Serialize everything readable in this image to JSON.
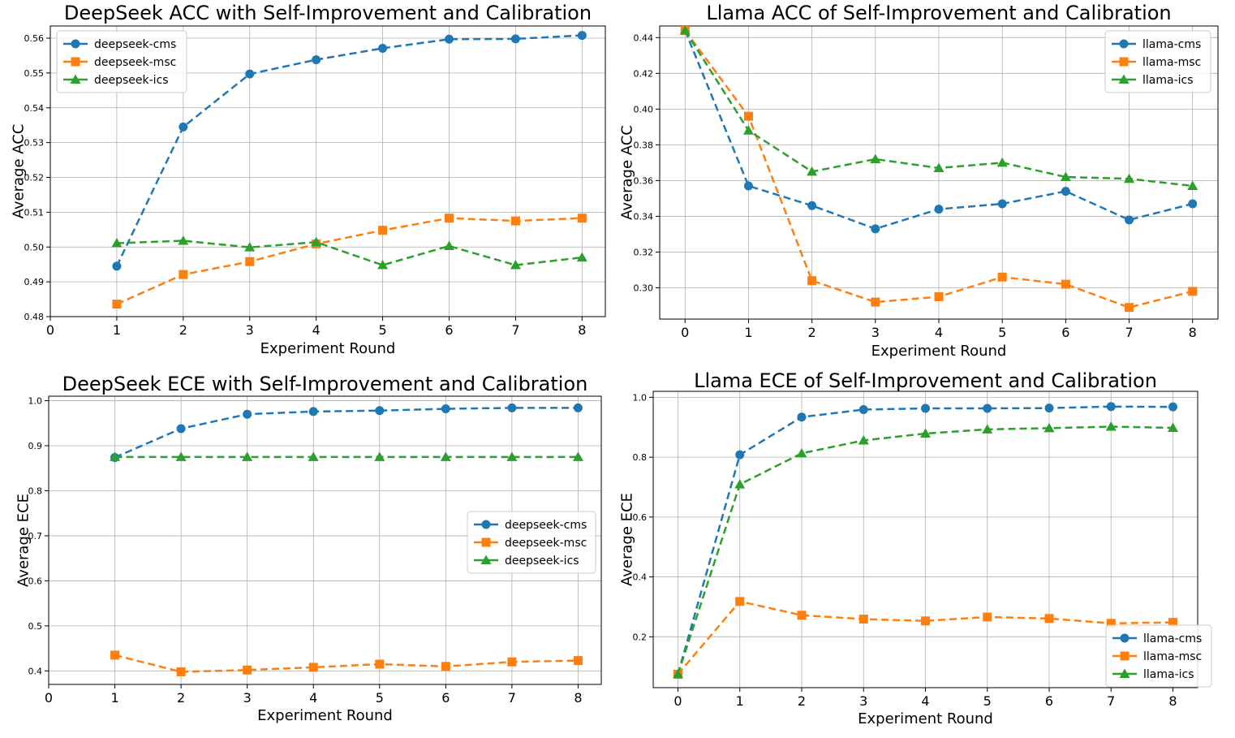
{
  "colors": {
    "cms": "#1f77b4",
    "msc": "#ff7f0e",
    "ics": "#2ca02c"
  },
  "chart_data": [
    {
      "type": "line",
      "title": "DeepSeek ACC with Self-Improvement and Calibration",
      "xlabel": "Experiment Round",
      "ylabel": "Average ACC",
      "xlim": [
        0,
        8.35
      ],
      "ylim": [
        0.48,
        0.5635
      ],
      "xticks": [
        0,
        1,
        2,
        3,
        4,
        5,
        6,
        7,
        8
      ],
      "yticks": [
        "0.48",
        "0.49",
        "0.50",
        "0.51",
        "0.52",
        "0.53",
        "0.54",
        "0.55",
        "0.56"
      ],
      "legend_loc": "upper-left",
      "series": [
        {
          "name": "deepseek-cms",
          "key": "cms",
          "x": [
            1,
            2,
            3,
            4,
            5,
            6,
            7,
            8
          ],
          "values": [
            0.4945,
            0.5345,
            0.5497,
            0.5538,
            0.5571,
            0.5597,
            0.5598,
            0.5608
          ]
        },
        {
          "name": "deepseek-msc",
          "key": "msc",
          "x": [
            1,
            2,
            3,
            4,
            5,
            6,
            7,
            8
          ],
          "values": [
            0.4836,
            0.4921,
            0.4958,
            0.5009,
            0.5048,
            0.5083,
            0.5075,
            0.5083
          ]
        },
        {
          "name": "deepseek-ics",
          "key": "ics",
          "x": [
            1,
            2,
            3,
            4,
            5,
            6,
            7,
            8
          ],
          "values": [
            0.5011,
            0.5018,
            0.4999,
            0.5014,
            0.4948,
            0.5003,
            0.4948,
            0.497
          ]
        }
      ]
    },
    {
      "type": "line",
      "title": "Llama ACC of Self-Improvement and Calibration",
      "xlabel": "Experiment Round",
      "ylabel": "Average ACC",
      "xlim": [
        -0.4,
        8.4
      ],
      "ylim": [
        0.2825,
        0.4465
      ],
      "xticks": [
        0,
        1,
        2,
        3,
        4,
        5,
        6,
        7,
        8
      ],
      "yticks": [
        "0.30",
        "0.32",
        "0.34",
        "0.36",
        "0.38",
        "0.40",
        "0.42",
        "0.44"
      ],
      "legend_loc": "upper-right",
      "series": [
        {
          "name": "llama-cms",
          "key": "cms",
          "x": [
            0,
            1,
            2,
            3,
            4,
            5,
            6,
            7,
            8
          ],
          "values": [
            0.444,
            0.357,
            0.346,
            0.333,
            0.344,
            0.347,
            0.354,
            0.338,
            0.347
          ]
        },
        {
          "name": "llama-msc",
          "key": "msc",
          "x": [
            0,
            1,
            2,
            3,
            4,
            5,
            6,
            7,
            8
          ],
          "values": [
            0.444,
            0.396,
            0.304,
            0.292,
            0.295,
            0.306,
            0.302,
            0.289,
            0.298
          ]
        },
        {
          "name": "llama-ics",
          "key": "ics",
          "x": [
            0,
            1,
            2,
            3,
            4,
            5,
            6,
            7,
            8
          ],
          "values": [
            0.444,
            0.388,
            0.365,
            0.372,
            0.367,
            0.37,
            0.362,
            0.361,
            0.357
          ]
        }
      ]
    },
    {
      "type": "line",
      "title": "DeepSeek ECE with Self-Improvement and Calibration",
      "xlabel": "Experiment Round",
      "ylabel": "Average ECE",
      "xlim": [
        0,
        8.35
      ],
      "ylim": [
        0.37,
        1.01
      ],
      "xticks": [
        0,
        1,
        2,
        3,
        4,
        5,
        6,
        7,
        8
      ],
      "yticks": [
        "0.4",
        "0.5",
        "0.6",
        "0.7",
        "0.8",
        "0.9",
        "1.0"
      ],
      "legend_loc": "center-right",
      "series": [
        {
          "name": "deepseek-cms",
          "key": "cms",
          "x": [
            1,
            2,
            3,
            4,
            5,
            6,
            7,
            8
          ],
          "values": [
            0.874,
            0.938,
            0.97,
            0.976,
            0.978,
            0.982,
            0.984,
            0.984
          ]
        },
        {
          "name": "deepseek-msc",
          "key": "msc",
          "x": [
            1,
            2,
            3,
            4,
            5,
            6,
            7,
            8
          ],
          "values": [
            0.435,
            0.398,
            0.402,
            0.408,
            0.415,
            0.41,
            0.42,
            0.423
          ]
        },
        {
          "name": "deepseek-ics",
          "key": "ics",
          "x": [
            1,
            2,
            3,
            4,
            5,
            6,
            7,
            8
          ],
          "values": [
            0.875,
            0.875,
            0.875,
            0.875,
            0.875,
            0.875,
            0.875,
            0.875
          ]
        }
      ]
    },
    {
      "type": "line",
      "title": "Llama ECE of Self-Improvement and Calibration",
      "xlabel": "Experiment Round",
      "ylabel": "Average ECE",
      "xlim": [
        -0.4,
        8.4
      ],
      "ylim": [
        0.03,
        1.02
      ],
      "xticks": [
        0,
        1,
        2,
        3,
        4,
        5,
        6,
        7,
        8
      ],
      "yticks": [
        "0.2",
        "0.4",
        "0.6",
        "0.8",
        "1.0"
      ],
      "legend_loc": "lower-right",
      "series": [
        {
          "name": "llama-cms",
          "key": "cms",
          "x": [
            0,
            1,
            2,
            3,
            4,
            5,
            6,
            7,
            8
          ],
          "values": [
            0.075,
            0.808,
            0.934,
            0.959,
            0.963,
            0.963,
            0.964,
            0.969,
            0.968
          ]
        },
        {
          "name": "llama-msc",
          "key": "msc",
          "x": [
            0,
            1,
            2,
            3,
            4,
            5,
            6,
            7,
            8
          ],
          "values": [
            0.075,
            0.318,
            0.272,
            0.259,
            0.253,
            0.266,
            0.261,
            0.245,
            0.248
          ]
        },
        {
          "name": "llama-ics",
          "key": "ics",
          "x": [
            0,
            1,
            2,
            3,
            4,
            5,
            6,
            7,
            8
          ],
          "values": [
            0.075,
            0.709,
            0.813,
            0.856,
            0.879,
            0.893,
            0.897,
            0.902,
            0.898
          ]
        }
      ]
    }
  ]
}
